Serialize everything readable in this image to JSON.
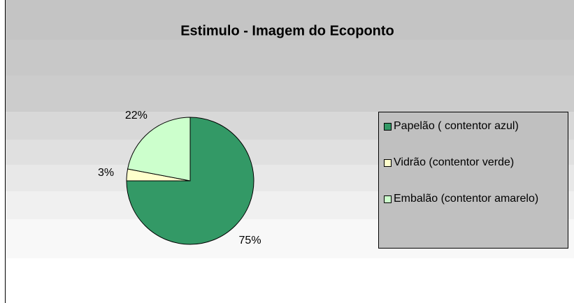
{
  "chart_data": {
    "type": "pie",
    "title": "Estimulo - Imagem do Ecoponto",
    "categories": [
      "Papelão ( contentor azul)",
      "Vidrão (contentor verde)",
      "Embalão (contentor amarelo)"
    ],
    "values": [
      75,
      3,
      22
    ],
    "value_labels": [
      "75%",
      "3%",
      "22%"
    ],
    "colors": [
      "#339966",
      "#ffffcc",
      "#ccffcc"
    ],
    "legend": "right"
  }
}
